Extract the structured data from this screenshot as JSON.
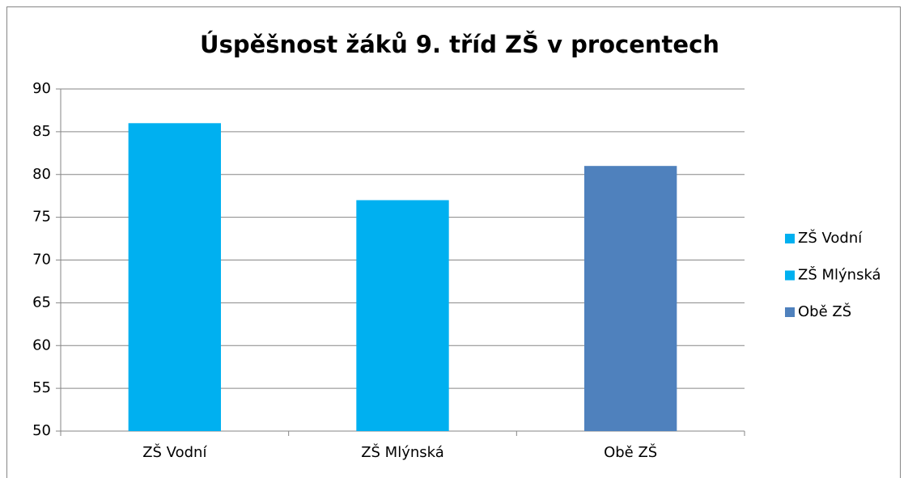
{
  "chart_data": {
    "type": "bar",
    "title": "Úspěšnost žáků 9. tříd ZŠ v procentech",
    "categories": [
      "ZŠ Vodní",
      "ZŠ Mlýnská",
      "Obě ZŠ"
    ],
    "values": [
      86,
      77,
      81
    ],
    "colors": [
      "#00b0f0",
      "#00b0f0",
      "#4f81bd"
    ],
    "ylim": [
      50,
      90
    ],
    "yticks": [
      50,
      55,
      60,
      65,
      70,
      75,
      80,
      85,
      90
    ],
    "grid": true,
    "legend": "right"
  }
}
